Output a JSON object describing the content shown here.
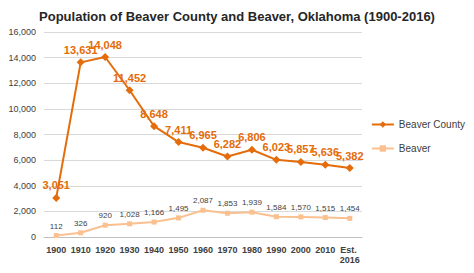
{
  "chart_data": {
    "type": "line",
    "title": "Population of Beaver County and Beaver, Oklahoma (1900-2016)",
    "categories": [
      "1900",
      "1910",
      "1920",
      "1930",
      "1940",
      "1950",
      "1960",
      "1970",
      "1980",
      "1990",
      "2000",
      "2010",
      "Est. 2016"
    ],
    "series": [
      {
        "name": "Beaver County",
        "color": "#e46c0a",
        "marker": "diamond",
        "line_style": "solid",
        "values": [
          3051,
          13631,
          14048,
          11452,
          8648,
          7411,
          6965,
          6282,
          6806,
          6023,
          5857,
          5636,
          5382
        ],
        "value_labels": [
          "3,051",
          "13,631",
          "14,048",
          "11,452",
          "8,648",
          "7,411",
          "6,965",
          "6,282",
          "6,806",
          "6,023",
          "5,857",
          "5,636",
          "5,382"
        ]
      },
      {
        "name": "Beaver",
        "color": "#fac090",
        "marker": "square",
        "line_style": "solid",
        "values": [
          112,
          326,
          920,
          1028,
          1166,
          1495,
          2087,
          1853,
          1939,
          1584,
          1570,
          1515,
          1454
        ],
        "value_labels": [
          "112",
          "326",
          "920",
          "1,028",
          "1,166",
          "1,495",
          "2,087",
          "1,853",
          "1,939",
          "1,584",
          "1,570",
          "1,515",
          "1,454"
        ]
      }
    ],
    "ylim": [
      0,
      16000
    ],
    "yticks": [
      0,
      {
        "value": 2000,
        "label": "2,000"
      },
      {
        "value": 4000,
        "label": "4,000"
      },
      {
        "value": 6000,
        "label": "6,000"
      },
      {
        "value": 8000,
        "label": "8,000"
      },
      {
        "value": 10000,
        "label": "10,000"
      },
      {
        "value": 12000,
        "label": "12,000"
      },
      {
        "value": 14000,
        "label": "14,000"
      },
      {
        "value": 16000,
        "label": "16,000"
      }
    ],
    "grid": true,
    "legend": "right",
    "data_labels": true
  }
}
